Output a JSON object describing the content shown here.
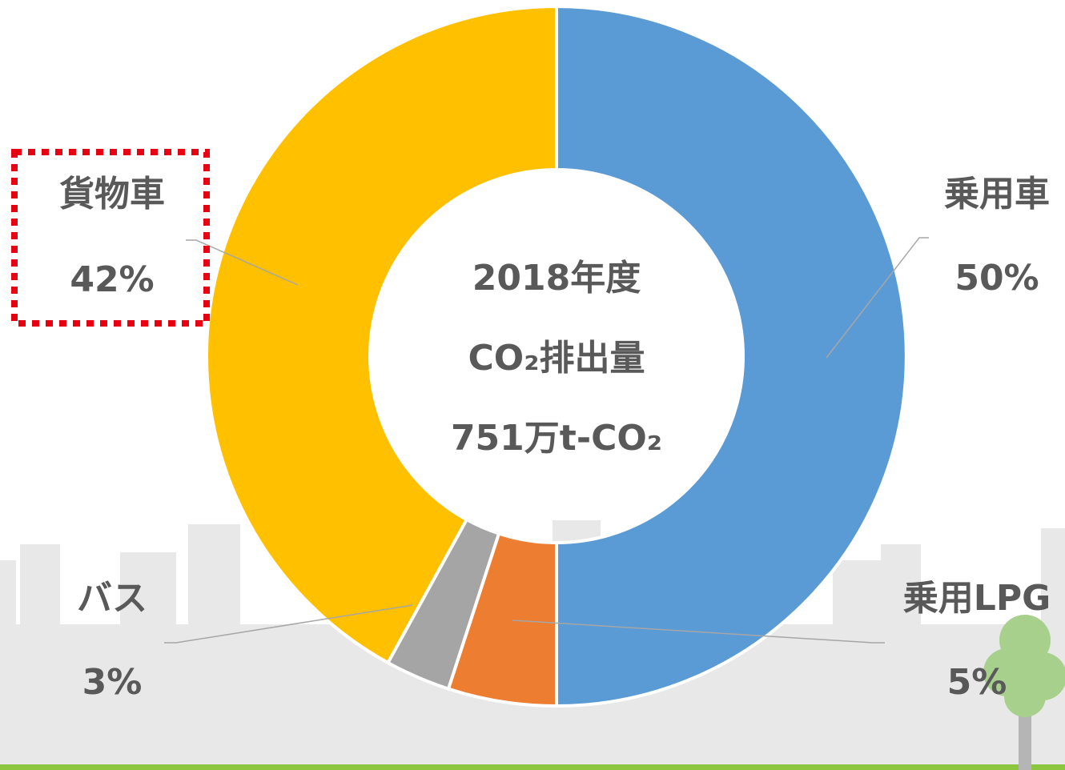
{
  "chart_data": {
    "type": "donut",
    "center_text": [
      "2018年度",
      "CO₂排出量",
      "751万t-CO₂"
    ],
    "categories": [
      "乗用車",
      "乗用LPG",
      "バス",
      "貨物車"
    ],
    "values": [
      50,
      5,
      3,
      42
    ],
    "value_labels": [
      "50%",
      "5%",
      "3%",
      "42%"
    ],
    "colors": [
      "#5b9bd5",
      "#ed7d31",
      "#a5a5a5",
      "#ffc000"
    ]
  }
}
